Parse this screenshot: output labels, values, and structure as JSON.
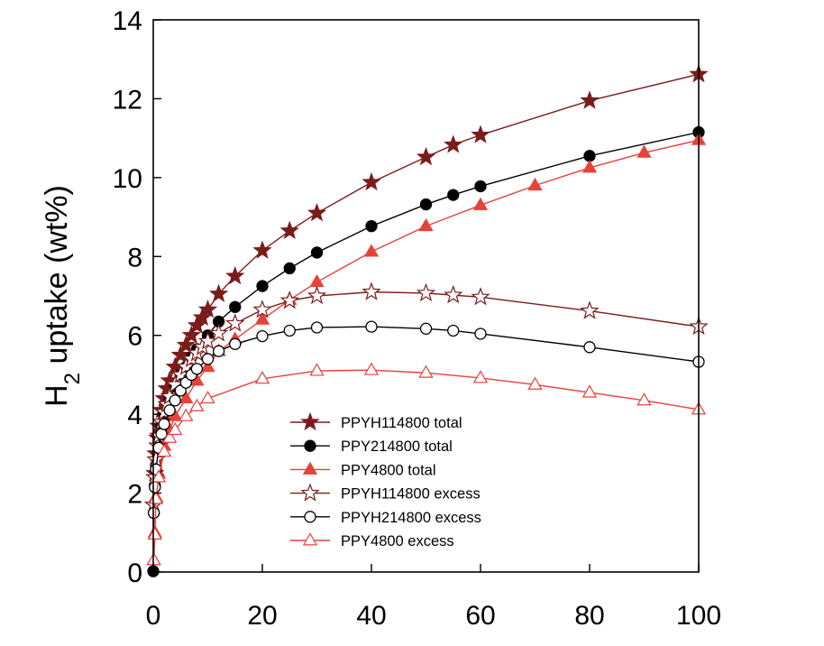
{
  "chart_data": {
    "type": "line",
    "title": "",
    "xlabel": "",
    "ylabel": "H",
    "ylabel_sub": "2",
    "ylabel_rest": " uptake (wt%)",
    "xlim": [
      0,
      100
    ],
    "ylim": [
      0,
      14
    ],
    "x_ticks": [
      0,
      20,
      40,
      60,
      80,
      100
    ],
    "x_tick_labels": [
      "0",
      "20",
      "40",
      "60",
      "80",
      "100"
    ],
    "y_ticks": [
      0,
      2,
      4,
      6,
      8,
      10,
      12,
      14
    ],
    "y_tick_labels": [
      "0",
      "2",
      "4",
      "6",
      "8",
      "10",
      "12",
      "14"
    ],
    "grid": false,
    "legend_position": "lower-center",
    "series": [
      {
        "name": "PPYH114800 total",
        "color": "#7b1c1c",
        "marker": "star-filled",
        "x": [
          0.1,
          0.3,
          0.5,
          0.8,
          1,
          1.5,
          2,
          2.5,
          3,
          4,
          5,
          6,
          7,
          8,
          9,
          10,
          12,
          15,
          20,
          25,
          30,
          40,
          50,
          55,
          60,
          80,
          100
        ],
        "y": [
          1.7,
          2.5,
          3.0,
          3.4,
          3.7,
          4.1,
          4.4,
          4.65,
          4.85,
          5.2,
          5.5,
          5.75,
          6.0,
          6.25,
          6.45,
          6.65,
          7.05,
          7.5,
          8.15,
          8.65,
          9.1,
          9.88,
          10.52,
          10.83,
          11.08,
          11.95,
          12.62
        ]
      },
      {
        "name": "PPY214800 total",
        "color": "#000000",
        "marker": "circle-filled",
        "x": [
          0,
          0.1,
          0.3,
          0.5,
          1,
          1.5,
          2,
          3,
          4,
          5,
          6,
          7,
          8,
          10,
          12,
          15,
          20,
          25,
          30,
          40,
          50,
          55,
          60,
          80,
          100
        ],
        "y": [
          0.02,
          1.5,
          2.2,
          2.7,
          3.3,
          3.7,
          4.0,
          4.4,
          4.7,
          5.0,
          5.2,
          5.45,
          5.65,
          6.0,
          6.35,
          6.72,
          7.25,
          7.7,
          8.1,
          8.77,
          9.32,
          9.56,
          9.78,
          10.55,
          11.15
        ]
      },
      {
        "name": "PPY4800 total",
        "color": "#e8413a",
        "marker": "triangle-filled",
        "x": [
          0.1,
          0.3,
          0.5,
          1,
          2,
          3,
          4,
          6,
          8,
          10,
          12,
          15,
          20,
          25,
          30,
          40,
          50,
          60,
          70,
          80,
          90,
          100
        ],
        "y": [
          0.3,
          1.0,
          1.9,
          2.5,
          3.2,
          3.6,
          3.95,
          4.4,
          4.85,
          5.2,
          5.6,
          5.9,
          6.4,
          6.9,
          7.35,
          8.12,
          8.77,
          9.3,
          9.8,
          10.25,
          10.63,
          10.95
        ]
      },
      {
        "name": "PPYH114800 excess",
        "color": "#7b1c1c",
        "marker": "star-open",
        "x": [
          0.1,
          0.3,
          0.5,
          0.8,
          1,
          1.5,
          2,
          2.5,
          3,
          4,
          5,
          6,
          7,
          8,
          9,
          10,
          12,
          15,
          20,
          25,
          30,
          40,
          50,
          55,
          60,
          80,
          100
        ],
        "y": [
          1.7,
          2.4,
          2.85,
          3.2,
          3.45,
          3.8,
          4.05,
          4.25,
          4.45,
          4.75,
          5.0,
          5.2,
          5.4,
          5.55,
          5.7,
          5.85,
          6.05,
          6.3,
          6.65,
          6.88,
          7.0,
          7.1,
          7.07,
          7.02,
          6.97,
          6.62,
          6.22
        ]
      },
      {
        "name": "PPYH214800 excess",
        "color": "#000000",
        "marker": "circle-open",
        "x": [
          0.1,
          0.3,
          0.5,
          1,
          1.5,
          2,
          3,
          4,
          5,
          6,
          7,
          8,
          10,
          12,
          15,
          20,
          25,
          30,
          40,
          50,
          55,
          60,
          80,
          100
        ],
        "y": [
          1.5,
          2.15,
          2.6,
          3.15,
          3.5,
          3.75,
          4.1,
          4.35,
          4.6,
          4.8,
          5.0,
          5.15,
          5.4,
          5.6,
          5.78,
          5.98,
          6.12,
          6.2,
          6.22,
          6.17,
          6.12,
          6.04,
          5.7,
          5.33
        ]
      },
      {
        "name": "PPY4800 excess",
        "color": "#e8413a",
        "marker": "triangle-open",
        "x": [
          0.1,
          0.3,
          0.5,
          1,
          2,
          3,
          4,
          6,
          8,
          10,
          20,
          30,
          40,
          50,
          60,
          70,
          80,
          90,
          100
        ],
        "y": [
          0.3,
          0.95,
          1.85,
          2.4,
          3.05,
          3.4,
          3.6,
          3.95,
          4.2,
          4.4,
          4.9,
          5.1,
          5.12,
          5.05,
          4.92,
          4.75,
          4.55,
          4.35,
          4.12
        ]
      }
    ]
  }
}
